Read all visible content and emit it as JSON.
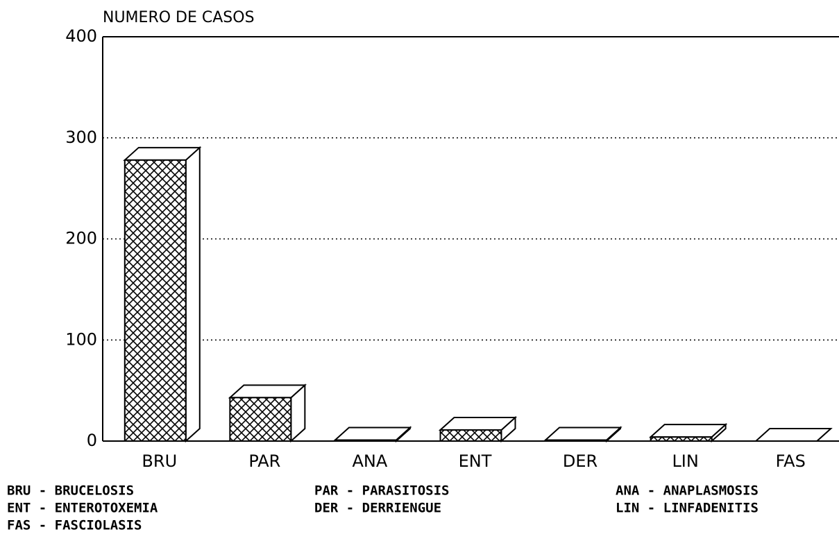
{
  "chart_data": {
    "type": "bar3d",
    "title": "NUMERO DE CASOS",
    "categories": [
      "BRU",
      "PAR",
      "ANA",
      "ENT",
      "DER",
      "LIN",
      "FAS"
    ],
    "values": [
      278,
      43,
      1,
      11,
      1,
      4,
      0
    ],
    "color": "#000000",
    "ylim": [
      0,
      400
    ],
    "yticks": [
      0,
      100,
      200,
      300,
      400
    ],
    "grid": true,
    "legend_notes": [
      "BRU - BRUCELOSIS",
      "PAR - PARASITOSIS",
      "ANA - ANAPLASMOSIS",
      "ENT - ENTEROTOXEMIA",
      "DER - DERRIENGUE",
      "LIN - LINFADENITIS",
      "FAS - FASCIOLASIS"
    ]
  }
}
